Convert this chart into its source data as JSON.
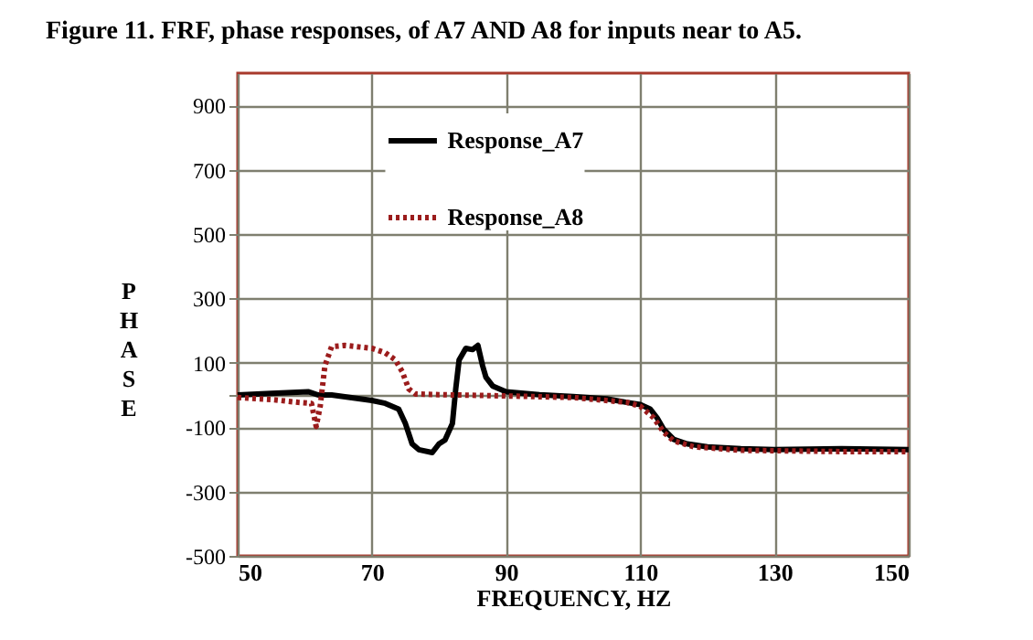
{
  "chart_data": {
    "type": "line",
    "title": "Figure 11. FRF, phase responses, of A7 AND A8 for inputs near to A5.",
    "xlabel": "FREQUENCY, HZ",
    "ylabel": "PHASE",
    "xlim": [
      50,
      150
    ],
    "xticks": [
      50,
      70,
      90,
      110,
      130,
      150
    ],
    "ylim": [
      -500,
      1000
    ],
    "yticks": [
      900,
      700,
      500,
      300,
      100,
      {
        "value": 0,
        "label": null
      },
      -100,
      -300,
      -500
    ],
    "grid": true,
    "legend": "top",
    "marker": "none",
    "series": [
      {
        "name": "Response_A7",
        "color": "#000000",
        "line_style": "solid",
        "x": [
          50,
          55,
          60.5,
          62,
          64,
          70,
          72,
          74,
          75,
          76,
          77,
          79,
          80,
          80.9,
          82,
          82.5,
          83,
          84,
          85,
          85.8,
          86.5,
          87,
          88,
          90,
          95,
          100,
          105,
          108,
          110,
          111.5,
          112.5,
          113.5,
          115,
          117,
          120,
          125,
          130,
          140,
          150
        ],
        "values": [
          0,
          5,
          10,
          0,
          0,
          -17,
          -26,
          -44,
          -89,
          -152,
          -170,
          -179,
          -152,
          -140,
          -89,
          19,
          109,
          145,
          141,
          154,
          91,
          55,
          28,
          10,
          1,
          -5,
          -12,
          -23,
          -30,
          -44,
          -71,
          -107,
          -138,
          -152,
          -161,
          -167,
          -170,
          -167,
          -170
        ]
      },
      {
        "name": "Response_A8",
        "color": "#9b1c1c",
        "line_style": "dotted",
        "x": [
          50,
          55,
          59,
          61,
          61.7,
          62.3,
          63,
          64,
          66,
          70,
          72,
          73.5,
          74.5,
          75.5,
          76.5,
          80,
          90,
          100,
          108,
          110,
          112,
          113.5,
          115,
          118,
          125,
          140,
          150
        ],
        "values": [
          -8,
          -14,
          -23,
          -26,
          -98,
          -35,
          91,
          150,
          154,
          145,
          131,
          109,
          73,
          19,
          3,
          1,
          -3,
          -8,
          -23,
          -35,
          -71,
          -116,
          -143,
          -161,
          -172,
          -176,
          -176
        ]
      }
    ]
  }
}
